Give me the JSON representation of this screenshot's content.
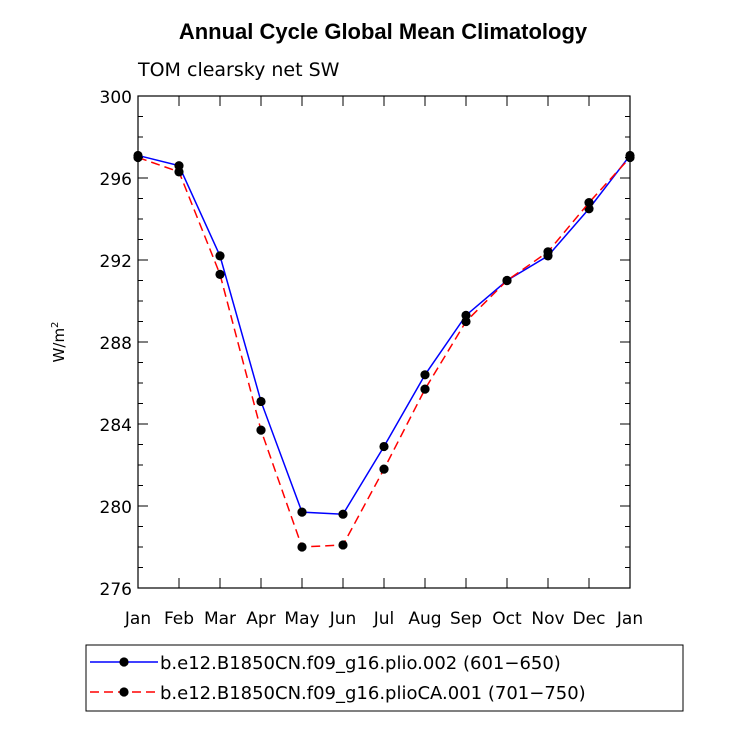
{
  "chart_data": {
    "type": "line",
    "title": "Annual Cycle Global Mean Climatology",
    "subtitle": "TOM clearsky net SW",
    "xlabel": "",
    "ylabel": "W/m",
    "ylabel_superscript": "2",
    "categories": [
      "Jan",
      "Feb",
      "Mar",
      "Apr",
      "May",
      "Jun",
      "Jul",
      "Aug",
      "Sep",
      "Oct",
      "Nov",
      "Dec",
      "Jan"
    ],
    "ylim": [
      276,
      300
    ],
    "yticks": [
      276,
      280,
      284,
      288,
      292,
      296,
      300
    ],
    "grid": false,
    "legend_position": "bottom",
    "series": [
      {
        "name": "b.e12.B1850CN.f09_g16.plio.002 (601−650)",
        "color": "#0000ff",
        "style": "solid",
        "values": [
          297.1,
          296.6,
          292.2,
          285.1,
          279.7,
          279.6,
          282.9,
          286.4,
          289.3,
          291.0,
          292.2,
          294.5,
          297.1
        ]
      },
      {
        "name": "b.e12.B1850CN.f09_g16.plioCA.001 (701−750)",
        "color": "#ff0000",
        "style": "dashed",
        "values": [
          297.0,
          296.3,
          291.3,
          283.7,
          278.0,
          278.1,
          281.8,
          285.7,
          289.0,
          291.0,
          292.4,
          294.8,
          297.0
        ]
      }
    ]
  }
}
